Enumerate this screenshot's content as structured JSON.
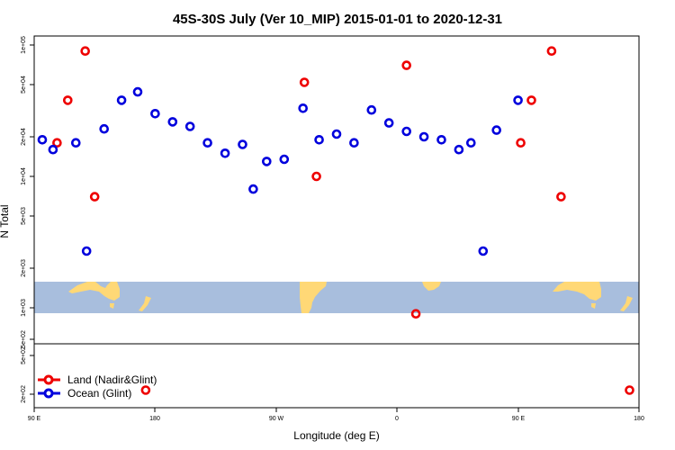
{
  "chart_data": {
    "type": "scatter",
    "title": "45S-30S July (Ver 10_MIP)   2015-01-01 to 2020-12-31",
    "xlabel": "Longitude (deg E)",
    "ylabel": "N Total",
    "x_ticks": [
      "90 E",
      "180",
      "90 W",
      "0",
      "90 E",
      "180"
    ],
    "y_ticks_upper": [
      "1e+05",
      "5e+04",
      "2e+04",
      "1e+04",
      "5e+03",
      "2e+03",
      "1e+03",
      "5e+02"
    ],
    "y_ticks_lower": [
      "5e+02",
      "2e+02"
    ],
    "scale": "log",
    "map_inset": "45S-30S world map strip",
    "legend_position": "bottom-left",
    "series": [
      {
        "name": "Land (Nadir&Glint)",
        "color": "#ee0000",
        "points": [
          {
            "lon": 107,
            "n": 18000
          },
          {
            "lon": 115,
            "n": 38000
          },
          {
            "lon": 128,
            "n": 90000
          },
          {
            "lon": 135,
            "n": 7000
          },
          {
            "lon": 173,
            "n": 220
          },
          {
            "lon": 291,
            "n": 52000
          },
          {
            "lon": 300,
            "n": 10000
          },
          {
            "lon": 367,
            "n": 70000
          },
          {
            "lon": 374,
            "n": 900
          },
          {
            "lon": 452,
            "n": 18000
          },
          {
            "lon": 460,
            "n": 38000
          },
          {
            "lon": 475,
            "n": 90000
          },
          {
            "lon": 482,
            "n": 7000
          },
          {
            "lon": 533,
            "n": 220
          }
        ]
      },
      {
        "name": "Ocean (Glint)",
        "color": "#0000dd",
        "points": [
          {
            "lon": 96,
            "n": 19000
          },
          {
            "lon": 104,
            "n": 16000
          },
          {
            "lon": 121,
            "n": 18000
          },
          {
            "lon": 129,
            "n": 2700
          },
          {
            "lon": 142,
            "n": 23000
          },
          {
            "lon": 155,
            "n": 38000
          },
          {
            "lon": 167,
            "n": 44000
          },
          {
            "lon": 180,
            "n": 30000
          },
          {
            "lon": 193,
            "n": 26000
          },
          {
            "lon": 206,
            "n": 24000
          },
          {
            "lon": 219,
            "n": 18000
          },
          {
            "lon": 232,
            "n": 15000
          },
          {
            "lon": 245,
            "n": 17500
          },
          {
            "lon": 253,
            "n": 8000
          },
          {
            "lon": 263,
            "n": 13000
          },
          {
            "lon": 276,
            "n": 13500
          },
          {
            "lon": 290,
            "n": 33000
          },
          {
            "lon": 302,
            "n": 19000
          },
          {
            "lon": 315,
            "n": 21000
          },
          {
            "lon": 328,
            "n": 18000
          },
          {
            "lon": 341,
            "n": 32000
          },
          {
            "lon": 354,
            "n": 25500
          },
          {
            "lon": 367,
            "n": 22000
          },
          {
            "lon": 380,
            "n": 20000
          },
          {
            "lon": 393,
            "n": 19000
          },
          {
            "lon": 406,
            "n": 16000
          },
          {
            "lon": 415,
            "n": 18000
          },
          {
            "lon": 424,
            "n": 2700
          },
          {
            "lon": 434,
            "n": 22500
          },
          {
            "lon": 450,
            "n": 38000
          }
        ]
      }
    ]
  }
}
